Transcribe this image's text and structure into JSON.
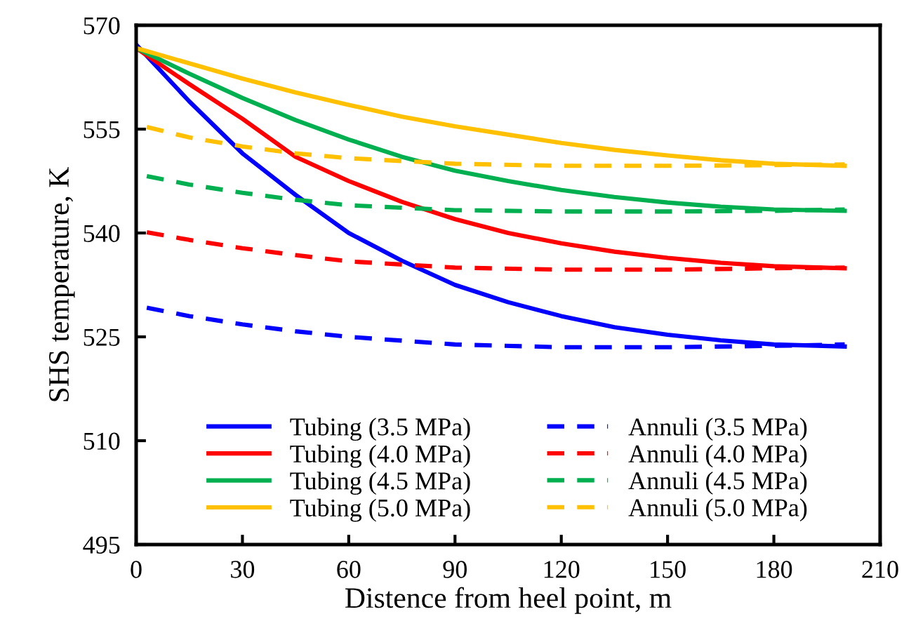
{
  "chart_data": {
    "type": "line",
    "xlabel": "Distence from heel point, m",
    "ylabel": "SHS temperature, K",
    "xlim": [
      0,
      210
    ],
    "xticks": [
      0,
      30,
      60,
      90,
      120,
      150,
      180,
      210
    ],
    "ylim": [
      495,
      570
    ],
    "yticks": [
      495,
      510,
      525,
      540,
      555,
      570
    ],
    "grid": false,
    "legend": "bottom",
    "marker": "none",
    "series": [
      {
        "name": "Tubing (3.5 MPa)",
        "color": "#0000ff",
        "line_style": "solid",
        "x": [
          0,
          15,
          30,
          45,
          60,
          75,
          90,
          105,
          120,
          135,
          150,
          165,
          180,
          200
        ],
        "values": [
          567.2,
          559,
          551.5,
          545.5,
          540,
          536,
          532.5,
          530,
          528,
          526.4,
          525.3,
          524.5,
          523.9,
          523.6
        ]
      },
      {
        "name": "Tubing (4.0 MPa)",
        "color": "#ff0000",
        "line_style": "solid",
        "x": [
          0,
          15,
          30,
          45,
          60,
          75,
          90,
          105,
          120,
          135,
          150,
          165,
          180,
          200
        ],
        "values": [
          566.7,
          561.5,
          556.5,
          551,
          547.5,
          544.5,
          542,
          540,
          538.5,
          537.3,
          536.4,
          535.7,
          535.2,
          534.9
        ]
      },
      {
        "name": "Tubing (4.5 MPa)",
        "color": "#00b050",
        "line_style": "solid",
        "x": [
          0,
          15,
          30,
          45,
          60,
          75,
          90,
          105,
          120,
          135,
          150,
          165,
          180,
          200
        ],
        "values": [
          566.7,
          563,
          559.5,
          556.3,
          553.5,
          551,
          549,
          547.5,
          546.2,
          545.2,
          544.4,
          543.8,
          543.4,
          543.2
        ]
      },
      {
        "name": "Tubing (5.0 MPa)",
        "color": "#ffc000",
        "line_style": "solid",
        "x": [
          0,
          15,
          30,
          45,
          60,
          75,
          90,
          105,
          120,
          135,
          150,
          165,
          180,
          200
        ],
        "values": [
          566.7,
          564.5,
          562.3,
          560.3,
          558.5,
          556.8,
          555.4,
          554.2,
          553,
          552,
          551.2,
          550.5,
          550,
          549.7
        ]
      },
      {
        "name": "Annuli (3.5 MPa)",
        "color": "#0000ff",
        "line_style": "dashed",
        "x": [
          3,
          15,
          30,
          45,
          60,
          90,
          120,
          150,
          180,
          200
        ],
        "values": [
          529.2,
          528,
          526.8,
          525.8,
          525,
          523.9,
          523.5,
          523.5,
          523.7,
          523.9
        ]
      },
      {
        "name": "Annuli (4.0 MPa)",
        "color": "#ff0000",
        "line_style": "dashed",
        "x": [
          3,
          15,
          30,
          45,
          60,
          90,
          120,
          150,
          180,
          200
        ],
        "values": [
          540.1,
          539,
          537.8,
          536.8,
          535.9,
          535,
          534.7,
          534.7,
          534.9,
          535.0
        ]
      },
      {
        "name": "Annuli (4.5 MPa)",
        "color": "#00b050",
        "line_style": "dashed",
        "x": [
          3,
          15,
          30,
          45,
          60,
          90,
          120,
          150,
          180,
          200
        ],
        "values": [
          548.2,
          547,
          545.8,
          544.8,
          544,
          543.3,
          543.1,
          543.1,
          543.2,
          543.4
        ]
      },
      {
        "name": "Annuli (5.0 MPa)",
        "color": "#ffc000",
        "line_style": "dashed",
        "x": [
          3,
          15,
          30,
          45,
          60,
          90,
          120,
          150,
          180,
          200
        ],
        "values": [
          555.3,
          553.8,
          552.5,
          551.5,
          550.8,
          550,
          549.7,
          549.7,
          549.8,
          549.9
        ]
      }
    ]
  }
}
